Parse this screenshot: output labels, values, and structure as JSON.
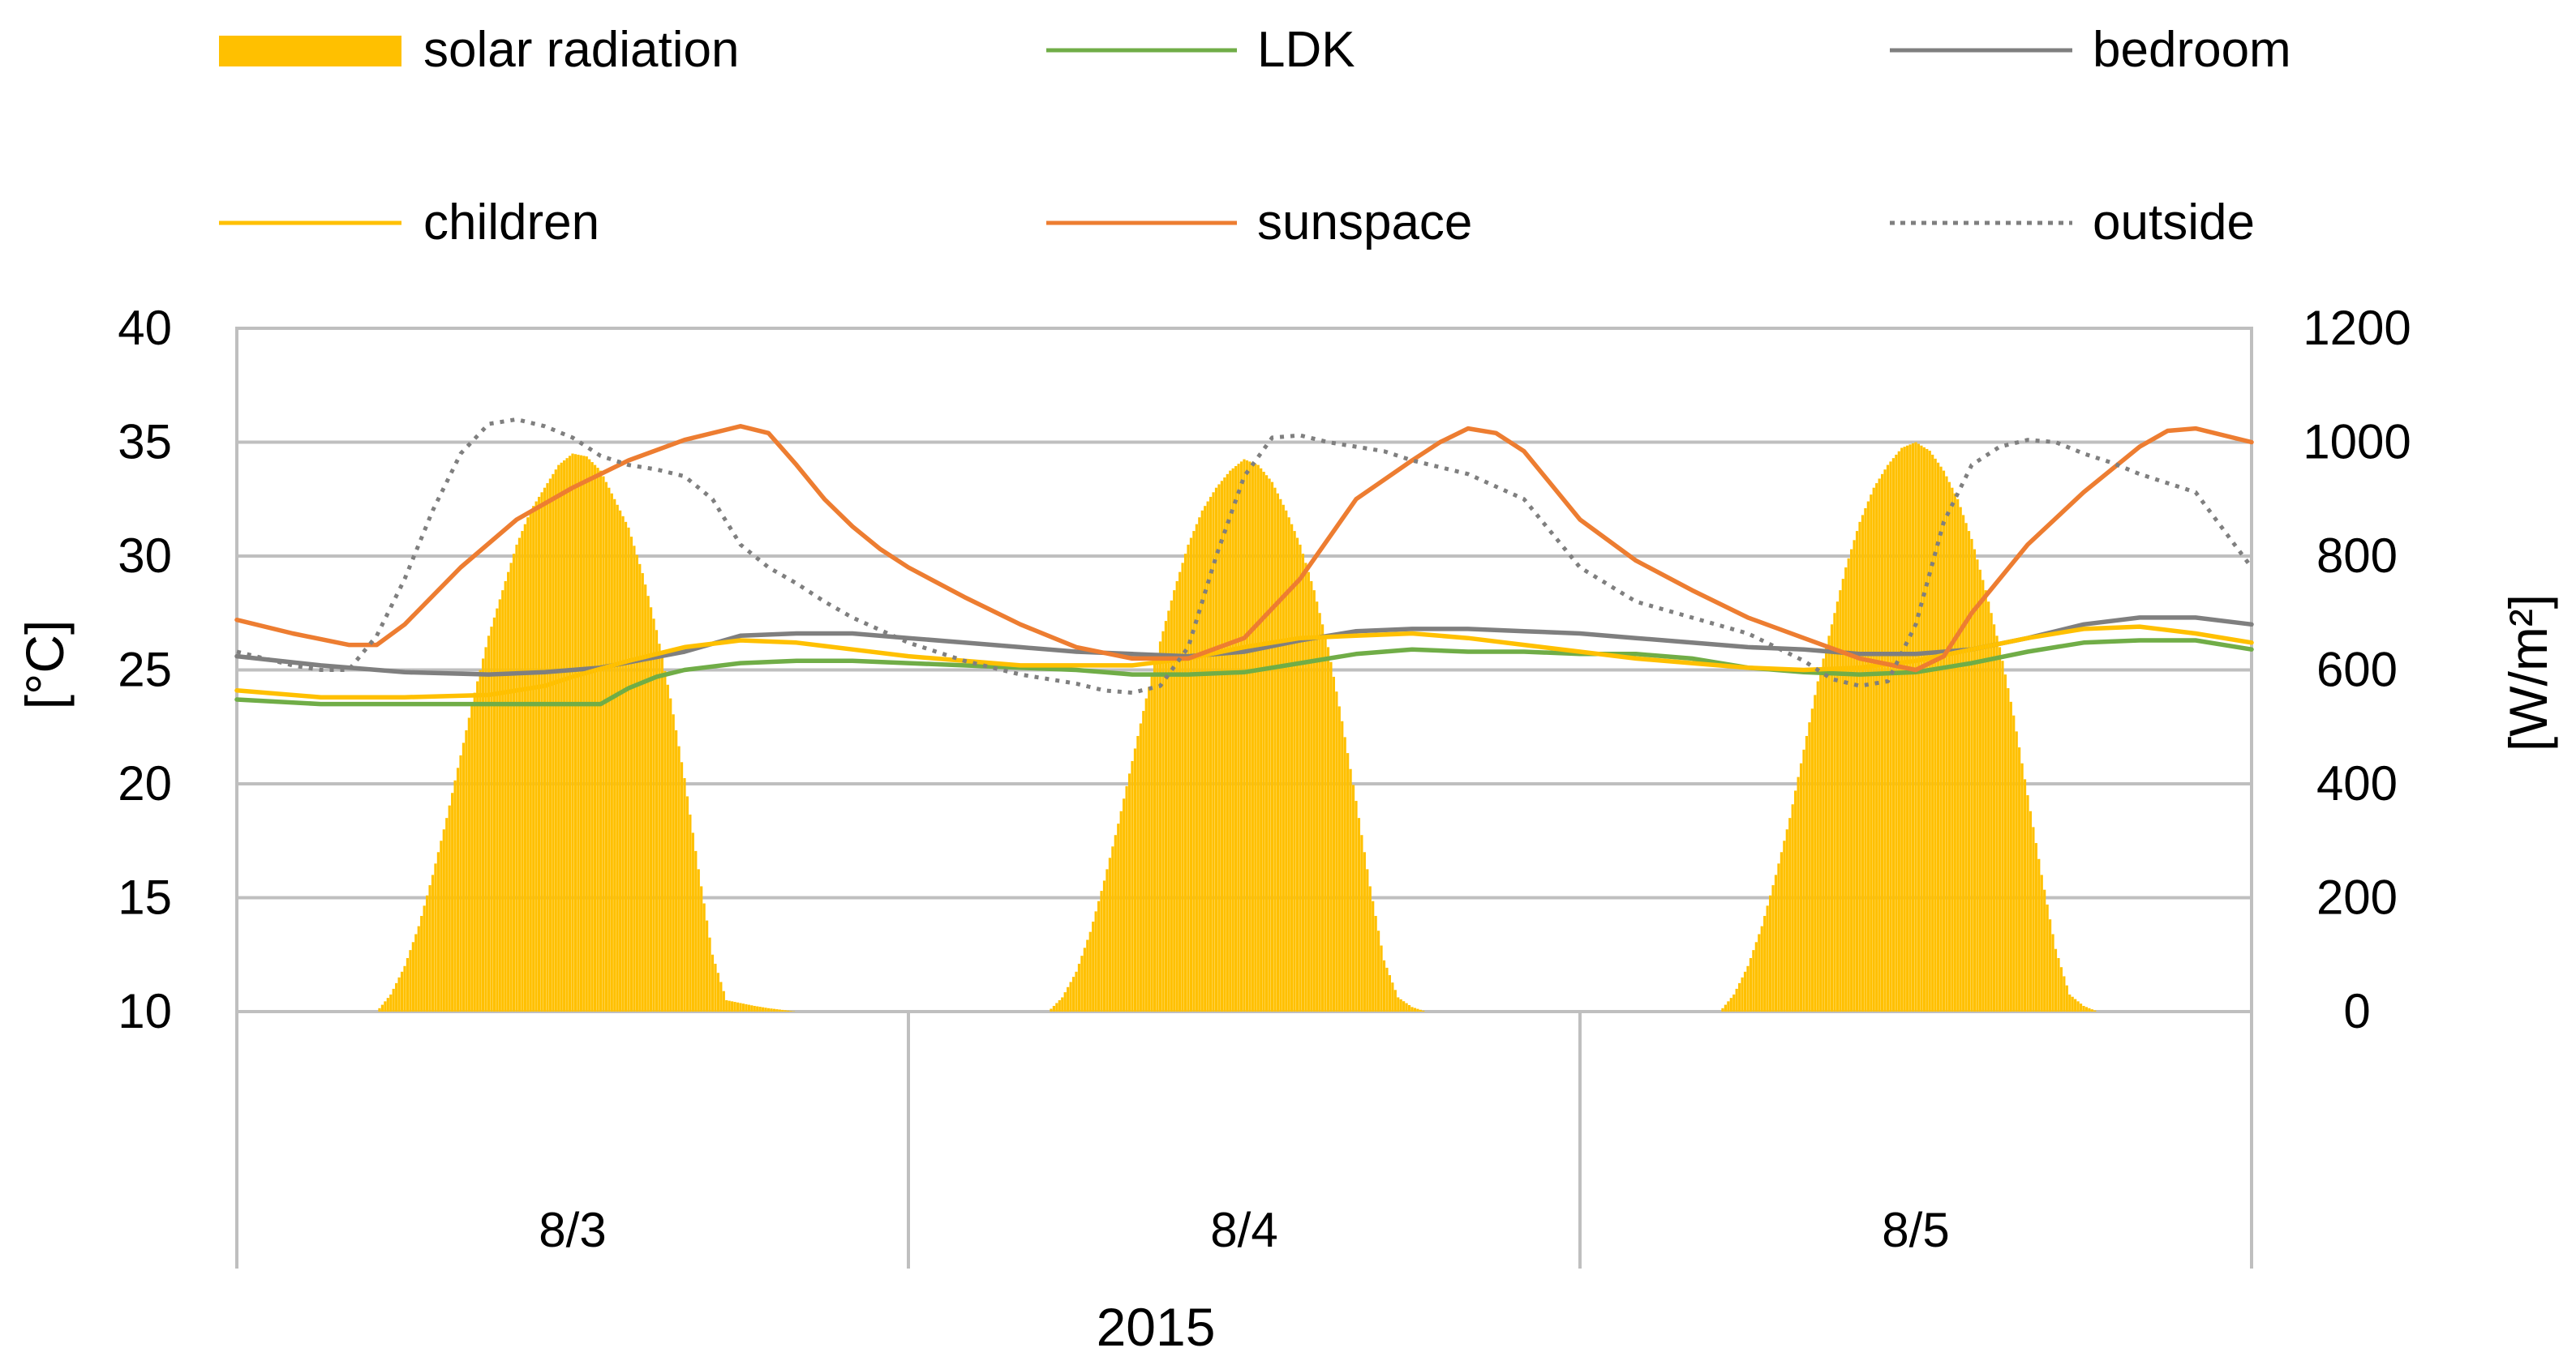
{
  "chart_data": {
    "type": "line",
    "title": "",
    "xlabel": "2015",
    "ylabel": "[°C]",
    "y2label": "[W/m²]",
    "ylim": [
      10,
      40
    ],
    "y2lim": [
      0,
      1200
    ],
    "yticks": [
      "10",
      "15",
      "20",
      "25",
      "30",
      "35",
      "40"
    ],
    "y2ticks": [
      "0",
      "200",
      "400",
      "600",
      "800",
      "1000",
      "1200"
    ],
    "categories": [
      "8/3",
      "8/4",
      "8/5"
    ],
    "grid": true,
    "legend_position": "top",
    "x_unit": "hours from 8/3 00:00",
    "xlim": [
      0,
      72
    ],
    "series": [
      {
        "name": "solar radiation",
        "type": "bar",
        "axis": "right",
        "color": "#ffc000",
        "x": [
          5,
          5.5,
          6,
          6.5,
          7,
          7.5,
          8,
          8.5,
          9,
          9.5,
          10,
          10.5,
          11,
          11.5,
          12,
          12.5,
          13,
          13.5,
          14,
          14.5,
          15,
          15.5,
          16,
          16.5,
          17,
          17.5,
          18,
          18.5,
          19,
          19.5,
          20,
          29,
          29.5,
          30,
          30.5,
          31,
          31.5,
          32,
          32.5,
          33,
          33.5,
          34,
          34.5,
          35,
          35.5,
          36,
          36.5,
          37,
          37.5,
          38,
          38.5,
          39,
          39.5,
          40,
          40.5,
          41,
          41.5,
          42,
          42.5,
          53,
          53.5,
          54,
          54.5,
          55,
          55.5,
          56,
          56.5,
          57,
          57.5,
          58,
          58.5,
          59,
          59.5,
          60,
          60.5,
          61,
          61.5,
          62,
          62.5,
          63,
          63.5,
          64,
          64.5,
          65,
          65.5,
          66,
          66.5
        ],
        "values": [
          0,
          30,
          80,
          150,
          240,
          340,
          450,
          560,
          660,
          740,
          820,
          880,
          920,
          960,
          980,
          975,
          950,
          900,
          850,
          770,
          670,
          550,
          410,
          250,
          100,
          20,
          15,
          10,
          6,
          3,
          0,
          0,
          25,
          70,
          140,
          230,
          330,
          440,
          550,
          650,
          740,
          820,
          880,
          920,
          950,
          970,
          960,
          930,
          880,
          820,
          740,
          640,
          510,
          370,
          220,
          90,
          25,
          8,
          0,
          0,
          30,
          80,
          150,
          240,
          340,
          460,
          580,
          680,
          780,
          860,
          920,
          960,
          990,
          1000,
          985,
          950,
          900,
          830,
          740,
          640,
          520,
          380,
          240,
          110,
          30,
          10,
          0
        ]
      },
      {
        "name": "LDK",
        "axis": "left",
        "color": "#70ad47",
        "x": [
          0,
          3,
          6,
          9,
          11,
          13,
          14,
          15,
          16,
          18,
          20,
          22,
          24,
          26,
          28,
          30,
          31,
          32,
          34,
          36,
          38,
          40,
          42,
          44,
          46,
          48,
          50,
          52,
          54,
          56,
          58,
          60,
          62,
          64,
          66,
          68,
          70,
          72
        ],
        "values": [
          23.7,
          23.5,
          23.5,
          23.5,
          23.5,
          23.5,
          24.2,
          24.7,
          25.0,
          25.3,
          25.4,
          25.4,
          25.3,
          25.2,
          25.1,
          25.0,
          24.9,
          24.8,
          24.8,
          24.9,
          25.3,
          25.7,
          25.9,
          25.8,
          25.8,
          25.7,
          25.7,
          25.5,
          25.1,
          24.9,
          24.8,
          24.9,
          25.3,
          25.8,
          26.2,
          26.3,
          26.3,
          25.9
        ]
      },
      {
        "name": "bedroom",
        "axis": "left",
        "color": "#7f7f7f",
        "x": [
          0,
          3,
          6,
          9,
          11,
          13,
          16,
          18,
          20,
          22,
          24,
          26,
          28,
          30,
          32,
          34,
          36,
          38,
          40,
          42,
          44,
          46,
          48,
          50,
          52,
          54,
          56,
          58,
          60,
          62,
          64,
          66,
          68,
          70,
          72
        ],
        "values": [
          25.6,
          25.2,
          24.9,
          24.8,
          24.9,
          25.1,
          25.8,
          26.5,
          26.6,
          26.6,
          26.4,
          26.2,
          26.0,
          25.8,
          25.7,
          25.6,
          25.8,
          26.3,
          26.7,
          26.8,
          26.8,
          26.7,
          26.6,
          26.4,
          26.2,
          26.0,
          25.9,
          25.7,
          25.7,
          25.9,
          26.4,
          27.0,
          27.3,
          27.3,
          27.0
        ]
      },
      {
        "name": "children",
        "axis": "left",
        "color": "#ffc000",
        "x": [
          0,
          3,
          6,
          9,
          11,
          12,
          14,
          16,
          18,
          20,
          22,
          24,
          26,
          28,
          30,
          32,
          34,
          36,
          38,
          40,
          42,
          44,
          46,
          48,
          50,
          52,
          54,
          56,
          58,
          60,
          62,
          64,
          66,
          68,
          70,
          72
        ],
        "values": [
          24.1,
          23.8,
          23.8,
          23.9,
          24.3,
          24.7,
          25.4,
          26.0,
          26.3,
          26.2,
          25.9,
          25.6,
          25.4,
          25.2,
          25.2,
          25.2,
          25.5,
          26.0,
          26.4,
          26.5,
          26.6,
          26.4,
          26.1,
          25.8,
          25.5,
          25.3,
          25.1,
          25.0,
          25.1,
          25.4,
          25.9,
          26.4,
          26.8,
          26.9,
          26.6,
          26.2
        ]
      },
      {
        "name": "sunspace",
        "axis": "left",
        "color": "#ed7d31",
        "x": [
          0,
          2,
          4,
          5,
          6,
          8,
          10,
          12,
          14,
          16,
          18,
          19,
          20,
          21,
          22,
          23,
          24,
          26,
          28,
          30,
          32,
          34,
          36,
          38,
          40,
          42,
          43,
          44,
          45,
          46,
          48,
          50,
          52,
          54,
          56,
          58,
          60,
          61,
          62,
          64,
          66,
          68,
          69,
          70,
          72
        ],
        "values": [
          27.2,
          26.6,
          26.1,
          26.1,
          27.0,
          29.5,
          31.6,
          33.0,
          34.2,
          35.1,
          35.7,
          35.4,
          34.0,
          32.5,
          31.3,
          30.3,
          29.5,
          28.2,
          27.0,
          26.0,
          25.5,
          25.5,
          26.4,
          29.0,
          32.5,
          34.2,
          35.0,
          35.6,
          35.4,
          34.6,
          31.6,
          29.8,
          28.5,
          27.3,
          26.4,
          25.5,
          25.0,
          25.6,
          27.5,
          30.5,
          32.8,
          34.8,
          35.5,
          35.6,
          35.0
        ]
      },
      {
        "name": "outside",
        "axis": "left",
        "color": "#7f7f7f",
        "dashed": true,
        "x": [
          0,
          2,
          3,
          4,
          5,
          6,
          7,
          8,
          9,
          10,
          11,
          12,
          13,
          14,
          15,
          16,
          17,
          18,
          19,
          20,
          21,
          22,
          24,
          26,
          28,
          30,
          31,
          32,
          33,
          34,
          35,
          36,
          37,
          38,
          39,
          40,
          41,
          42,
          44,
          46,
          48,
          50,
          52,
          54,
          55,
          56,
          57,
          58,
          59,
          60,
          61,
          62,
          63,
          64,
          65,
          66,
          67,
          68,
          70,
          72
        ],
        "values": [
          25.8,
          25.2,
          25.0,
          25.0,
          26.5,
          29.0,
          32.0,
          34.5,
          35.8,
          36.0,
          35.7,
          35.2,
          34.4,
          34.0,
          33.8,
          33.5,
          32.5,
          30.5,
          29.5,
          28.8,
          28.0,
          27.3,
          26.2,
          25.4,
          24.8,
          24.4,
          24.1,
          24.0,
          24.3,
          26.0,
          30.0,
          33.5,
          35.2,
          35.3,
          35.0,
          34.8,
          34.6,
          34.2,
          33.6,
          32.5,
          29.5,
          28.0,
          27.3,
          26.6,
          26.0,
          25.4,
          24.6,
          24.3,
          24.5,
          27.0,
          31.5,
          34.0,
          34.8,
          35.1,
          35.0,
          34.5,
          34.1,
          33.6,
          32.8,
          29.5
        ]
      }
    ]
  }
}
